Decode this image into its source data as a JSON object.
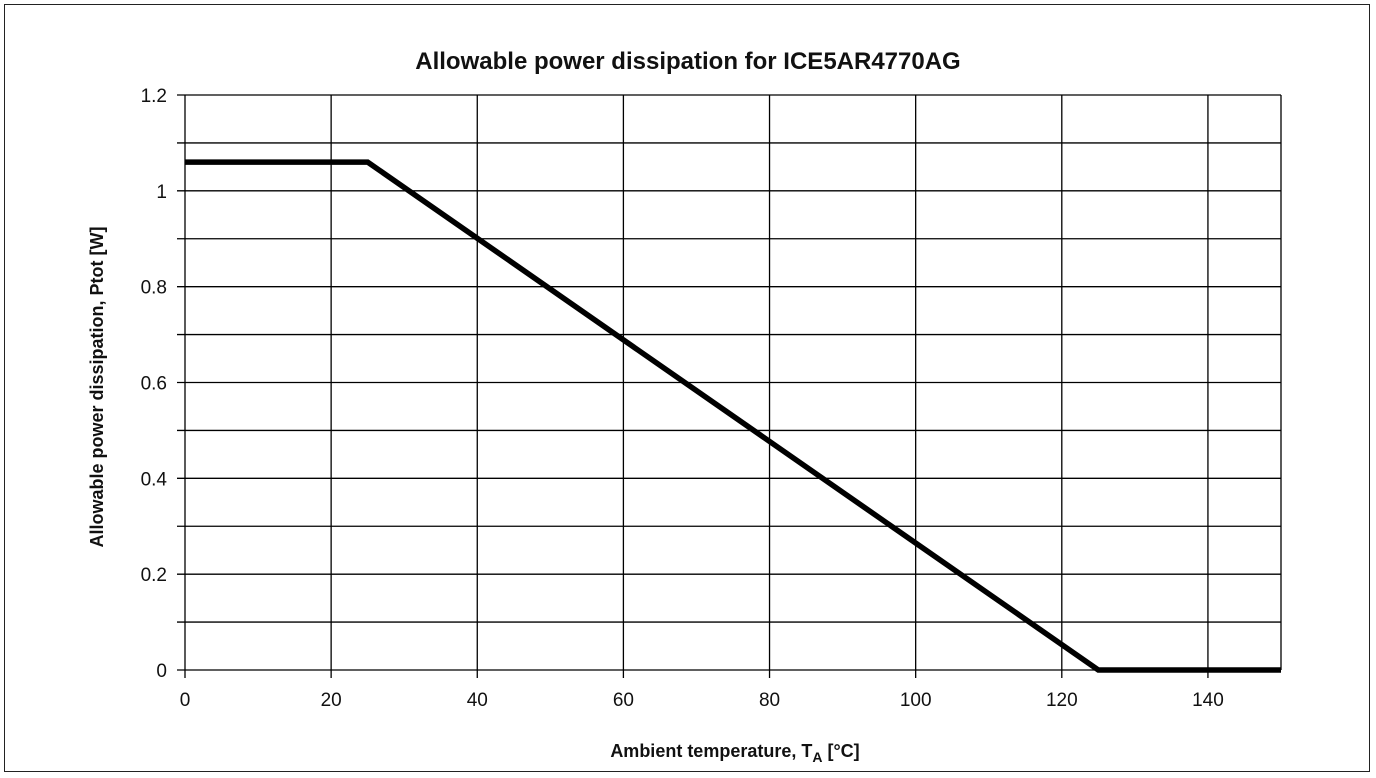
{
  "chart_data": {
    "type": "line",
    "title": "Allowable power dissipation for ICE5AR4770AG",
    "xlabel": "Ambient temperature, T",
    "xlabel_subscript": "A",
    "xlabel_unit": " [°C]",
    "ylabel": "Allowable power dissipation, Ptot [W]",
    "xlim": [
      0,
      150
    ],
    "ylim": [
      0,
      1.2
    ],
    "x_ticks": [
      0,
      20,
      40,
      60,
      80,
      100,
      120,
      140
    ],
    "y_ticks": [
      0,
      0.2,
      0.4,
      0.6,
      0.8,
      1,
      1.2
    ],
    "x_tick_labels": [
      "0",
      "20",
      "40",
      "60",
      "80",
      "100",
      "120",
      "140"
    ],
    "y_tick_labels": [
      "0",
      "0.2",
      "0.4",
      "0.6",
      "0.8",
      "1",
      "1.2"
    ],
    "grid": true,
    "series": [
      {
        "x": [
          0,
          25,
          125,
          150
        ],
        "y": [
          1.06,
          1.06,
          0,
          0
        ],
        "color": "#000000"
      }
    ]
  }
}
